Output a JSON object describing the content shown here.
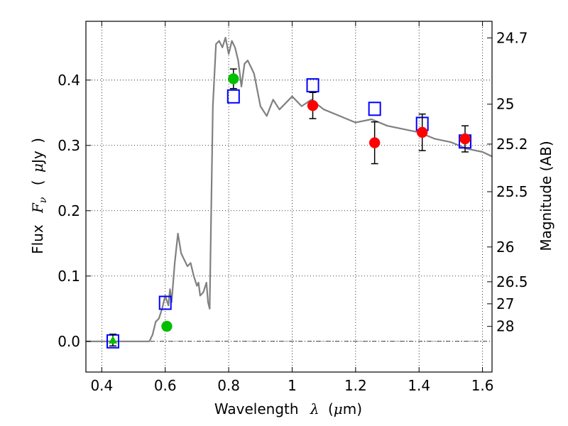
{
  "chart_data": {
    "type": "scatter",
    "xlabel": {
      "prefix": "Wavelength",
      "symbol": "λ",
      "open": "(",
      "unit_symbol": "μ",
      "unit": "m",
      "close": ")"
    },
    "ylabel": {
      "prefix": "Flux",
      "symbol": "F",
      "subscript": "ν",
      "open": "(",
      "unit_symbol": "μ",
      "unit": "Jy",
      "close": ")"
    },
    "y2label": "Magnitude (AB)",
    "xlim": [
      0.35,
      1.63
    ],
    "ylim": [
      -0.047,
      0.49
    ],
    "grid": true,
    "x_ticks": [
      {
        "value": 0.4,
        "label": "0.4"
      },
      {
        "value": 0.6,
        "label": "0.6"
      },
      {
        "value": 0.8,
        "label": "0.8"
      },
      {
        "value": 1.0,
        "label": "1"
      },
      {
        "value": 1.2,
        "label": "1.2"
      },
      {
        "value": 1.4,
        "label": "1.4"
      },
      {
        "value": 1.6,
        "label": "1.6"
      }
    ],
    "y_ticks": [
      {
        "value": 0.0,
        "label": "0.0"
      },
      {
        "value": 0.1,
        "label": "0.1"
      },
      {
        "value": 0.2,
        "label": "0.2"
      },
      {
        "value": 0.3,
        "label": "0.3"
      },
      {
        "value": 0.4,
        "label": "0.4"
      }
    ],
    "y2_ticks": [
      {
        "label": "24.7",
        "flux": 0.4646
      },
      {
        "label": "25",
        "flux": 0.3631
      },
      {
        "label": "25.2",
        "flux": 0.302
      },
      {
        "label": "25.5",
        "flux": 0.2291
      },
      {
        "label": "26",
        "flux": 0.1445
      },
      {
        "label": "26.5",
        "flux": 0.0912
      },
      {
        "label": "27",
        "flux": 0.0575
      },
      {
        "label": "28",
        "flux": 0.0229
      }
    ],
    "series": [
      {
        "style": "line",
        "color": "#808080",
        "x": [
          0.35,
          0.45,
          0.55,
          0.56,
          0.57,
          0.58,
          0.59,
          0.6,
          0.61,
          0.615,
          0.62,
          0.63,
          0.64,
          0.65,
          0.66,
          0.67,
          0.68,
          0.69,
          0.7,
          0.705,
          0.71,
          0.72,
          0.73,
          0.735,
          0.74,
          0.75,
          0.76,
          0.77,
          0.78,
          0.79,
          0.8,
          0.81,
          0.82,
          0.83,
          0.84,
          0.85,
          0.86,
          0.87,
          0.88,
          0.9,
          0.92,
          0.94,
          0.96,
          1.0,
          1.03,
          1.06,
          1.1,
          1.15,
          1.2,
          1.25,
          1.3,
          1.35,
          1.4,
          1.45,
          1.5,
          1.55,
          1.6,
          1.63
        ],
        "y": [
          0.0,
          0.0,
          0.0,
          0.01,
          0.03,
          0.035,
          0.05,
          0.07,
          0.055,
          0.08,
          0.06,
          0.12,
          0.165,
          0.135,
          0.125,
          0.115,
          0.12,
          0.1,
          0.085,
          0.09,
          0.07,
          0.075,
          0.09,
          0.06,
          0.05,
          0.36,
          0.455,
          0.46,
          0.45,
          0.465,
          0.44,
          0.46,
          0.45,
          0.43,
          0.39,
          0.425,
          0.43,
          0.42,
          0.41,
          0.36,
          0.345,
          0.37,
          0.355,
          0.375,
          0.36,
          0.37,
          0.355,
          0.345,
          0.335,
          0.34,
          0.33,
          0.325,
          0.32,
          0.31,
          0.305,
          0.295,
          0.29,
          0.283
        ]
      },
      {
        "style": "marker",
        "marker": "open-square",
        "color": "#0000ff",
        "x": [
          0.435,
          0.6,
          0.815,
          1.065,
          1.26,
          1.41,
          1.545
        ],
        "y": [
          0.0,
          0.059,
          0.375,
          0.392,
          0.356,
          0.333,
          0.306
        ]
      },
      {
        "style": "marker",
        "marker": "filled-circle",
        "color": "#00bf00",
        "x": [
          0.605,
          0.815
        ],
        "y": [
          0.023,
          0.402
        ],
        "yerr": [
          0.006,
          0.015
        ]
      },
      {
        "style": "marker",
        "marker": "filled-triangle",
        "color": "#00bf00",
        "x": [
          0.435
        ],
        "y": [
          0.002
        ],
        "yerr": [
          0.009
        ]
      },
      {
        "style": "marker",
        "marker": "filled-circle",
        "color": "#ff0000",
        "x": [
          1.065,
          1.26,
          1.41,
          1.545
        ],
        "y": [
          0.361,
          0.304,
          0.32,
          0.31
        ],
        "yerr": [
          0.02,
          0.032,
          0.028,
          0.02
        ]
      }
    ]
  }
}
